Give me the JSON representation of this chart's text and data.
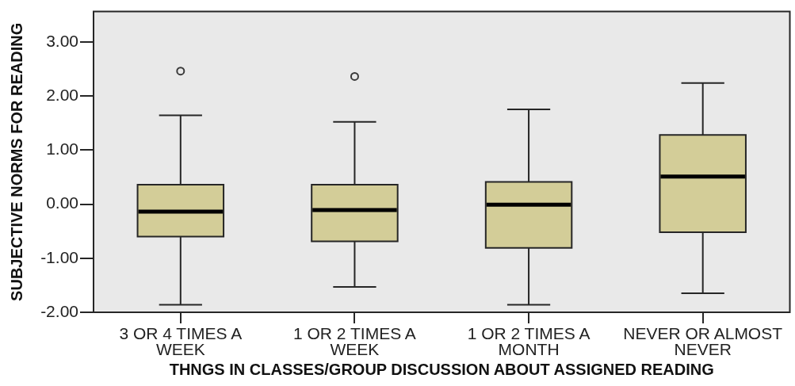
{
  "chart_data": {
    "type": "box",
    "xlabel": "THNGS IN CLASSES/GROUP DISCUSSION ABOUT ASSIGNED READING",
    "ylabel": "SUBJECTIVE NORMS FOR READING",
    "categories": [
      "3 OR 4 TIMES A WEEK",
      "1 OR 2 TIMES A WEEK",
      "1 OR 2 TIMES A MONTH",
      "NEVER OR ALMOST NEVER"
    ],
    "color": "#d3cd98",
    "boxes": [
      {
        "low": -1.86,
        "q1": -0.6,
        "median": -0.14,
        "q3": 0.36,
        "high": 1.64,
        "outliers": [
          2.46
        ]
      },
      {
        "low": -1.53,
        "q1": -0.69,
        "median": -0.11,
        "q3": 0.36,
        "high": 1.52,
        "outliers": [
          2.36
        ]
      },
      {
        "low": -1.86,
        "q1": -0.81,
        "median": -0.01,
        "q3": 0.41,
        "high": 1.75
      },
      {
        "low": -1.65,
        "q1": -0.52,
        "median": 0.51,
        "q3": 1.28,
        "high": 2.24
      }
    ],
    "ylim": [
      -2,
      3.56
    ],
    "yticks": [
      {
        "value": -2,
        "label": "-2.00"
      },
      {
        "value": -1,
        "label": "-1.00"
      },
      {
        "value": 0,
        "label": "0.00"
      },
      {
        "value": 1,
        "label": "1.00"
      },
      {
        "value": 2,
        "label": "2.00"
      },
      {
        "value": 3,
        "label": "3.00"
      }
    ],
    "grid": false,
    "legend": false
  }
}
